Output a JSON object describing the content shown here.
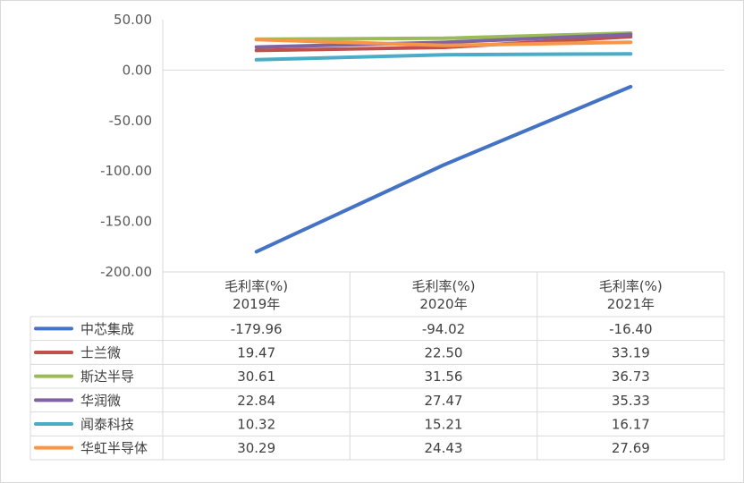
{
  "chart_data": {
    "type": "line",
    "categories": [
      "毛利率(%)\n2019年",
      "毛利率(%)\n2020年",
      "毛利率(%)\n2021年"
    ],
    "category_lines": [
      [
        "毛利率(%)",
        "2019年"
      ],
      [
        "毛利率(%)",
        "2020年"
      ],
      [
        "毛利率(%)",
        "2021年"
      ]
    ],
    "ylim": [
      -200,
      50
    ],
    "yticks": [
      50,
      0,
      -50,
      -100,
      -150,
      -200
    ],
    "ytick_labels": [
      "50.00",
      "0.00",
      "-50.00",
      "-100.00",
      "-150.00",
      "-200.00"
    ],
    "grid": false,
    "legend": "data-table-below",
    "series": [
      {
        "name": "中芯集成",
        "color": "#4472C4",
        "values": [
          -179.96,
          -94.02,
          -16.4
        ],
        "labels": [
          "-179.96",
          "-94.02",
          "-16.40"
        ]
      },
      {
        "name": "士兰微",
        "color": "#C0504D",
        "values": [
          19.47,
          22.5,
          33.19
        ],
        "labels": [
          "19.47",
          "22.50",
          "33.19"
        ]
      },
      {
        "name": "斯达半导",
        "color": "#9BBB59",
        "values": [
          30.61,
          31.56,
          36.73
        ],
        "labels": [
          "30.61",
          "31.56",
          "36.73"
        ]
      },
      {
        "name": "华润微",
        "color": "#8064A2",
        "values": [
          22.84,
          27.47,
          35.33
        ],
        "labels": [
          "22.84",
          "27.47",
          "35.33"
        ]
      },
      {
        "name": "闻泰科技",
        "color": "#4BACC6",
        "values": [
          10.32,
          15.21,
          16.17
        ],
        "labels": [
          "10.32",
          "15.21",
          "16.17"
        ]
      },
      {
        "name": "华虹半导体",
        "color": "#F79646",
        "values": [
          30.29,
          24.43,
          27.69
        ],
        "labels": [
          "30.29",
          "24.43",
          "27.69"
        ]
      }
    ]
  }
}
